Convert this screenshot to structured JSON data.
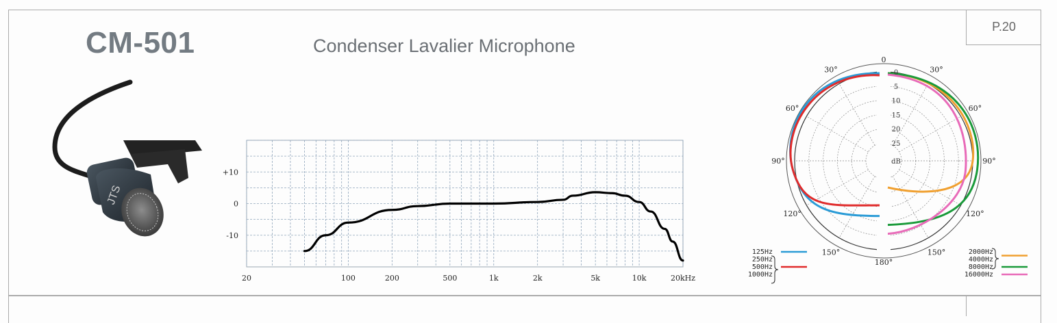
{
  "page_number": "P.20",
  "model": "CM-501",
  "product_type": "Condenser Lavalier Microphone",
  "frequency_response": {
    "x_ticks": [
      "20",
      "100",
      "200",
      "500",
      "1k",
      "2k",
      "5k",
      "10k",
      "20kHz"
    ],
    "y_ticks": [
      "+10",
      "0",
      "-10"
    ],
    "curve": [
      [
        50,
        -15
      ],
      [
        70,
        -10
      ],
      [
        100,
        -6
      ],
      [
        200,
        -2
      ],
      [
        300,
        -0.8
      ],
      [
        500,
        0
      ],
      [
        700,
        0
      ],
      [
        1000,
        0
      ],
      [
        2000,
        0.5
      ],
      [
        3000,
        1.2
      ],
      [
        3500,
        2.5
      ],
      [
        5000,
        3.6
      ],
      [
        6500,
        3.3
      ],
      [
        8000,
        2.5
      ],
      [
        10000,
        0.5
      ],
      [
        12000,
        -2.5
      ],
      [
        15000,
        -8
      ],
      [
        17000,
        -12
      ],
      [
        20000,
        -18
      ]
    ]
  },
  "polar": {
    "angle_labels": [
      "0",
      "30°",
      "60°",
      "90°",
      "120°",
      "150°",
      "180°",
      "30°",
      "60°",
      "90°",
      "120°",
      "150°"
    ],
    "db_labels": [
      "0",
      "5",
      "10",
      "15",
      "20",
      "25",
      "dB"
    ],
    "legend_left": {
      "items": [
        {
          "labels": [
            "125Hz"
          ],
          "color": "#2a9bd6"
        },
        {
          "labels": [
            "250Hz",
            "500Hz",
            "1000Hz"
          ],
          "color": "#e02b2b"
        }
      ]
    },
    "legend_right": {
      "items": [
        {
          "labels": [
            "2000Hz",
            "4000Hz"
          ],
          "color": "#f0a030"
        },
        {
          "labels": [
            "8000Hz"
          ],
          "color": "#1a9a3a"
        },
        {
          "labels": [
            "16000Hz"
          ],
          "color": "#e86ab8"
        }
      ]
    }
  }
}
